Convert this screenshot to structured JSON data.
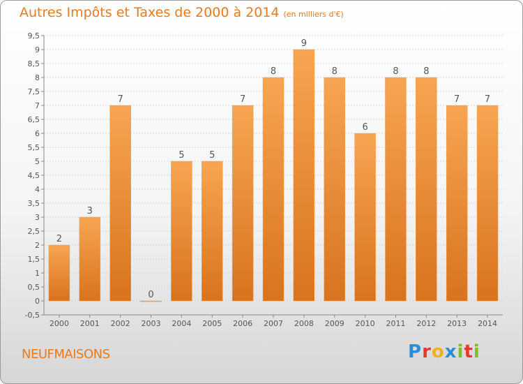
{
  "header": {
    "title": "Autres Impôts et Taxes de 2000 à 2014",
    "subtitle": "(en milliers d'€)"
  },
  "footer": {
    "commune": "NEUFMAISONS",
    "logo_letters": [
      {
        "ch": "P",
        "color": "#2a8fd6"
      },
      {
        "ch": "r",
        "color": "#e23b2e"
      },
      {
        "ch": "o",
        "color": "#f2b01e"
      },
      {
        "ch": "x",
        "color": "#2a8fd6"
      },
      {
        "ch": "i",
        "color": "#7bbf2a"
      },
      {
        "ch": "t",
        "color": "#e23b2e"
      },
      {
        "ch": "i",
        "color": "#7bbf2a"
      }
    ]
  },
  "colors": {
    "bar_top": "#f7a552",
    "bar_bottom": "#d9731d",
    "text_accent": "#e87a1e",
    "axis": "#666666"
  },
  "chart_data": {
    "type": "bar",
    "categories": [
      "2000",
      "2001",
      "2002",
      "2003",
      "2004",
      "2005",
      "2006",
      "2007",
      "2008",
      "2009",
      "2010",
      "2011",
      "2012",
      "2013",
      "2014"
    ],
    "values": [
      2,
      3,
      7,
      0,
      5,
      5,
      7,
      8,
      9,
      8,
      6,
      8,
      8,
      7,
      7
    ],
    "data_labels": [
      "2",
      "3",
      "7",
      "0",
      "5",
      "5",
      "7",
      "8",
      "9",
      "8",
      "6",
      "8",
      "8",
      "7",
      "7"
    ],
    "ylim": [
      -0.5,
      9.5
    ],
    "yticks": [
      "-0,5",
      "0",
      "0,5",
      "1",
      "1,5",
      "2",
      "2,5",
      "3",
      "3,5",
      "4",
      "4,5",
      "5",
      "5,5",
      "6",
      "6,5",
      "7",
      "7,5",
      "8",
      "8,5",
      "9",
      "9,5"
    ],
    "grid": true,
    "legend": "none"
  }
}
